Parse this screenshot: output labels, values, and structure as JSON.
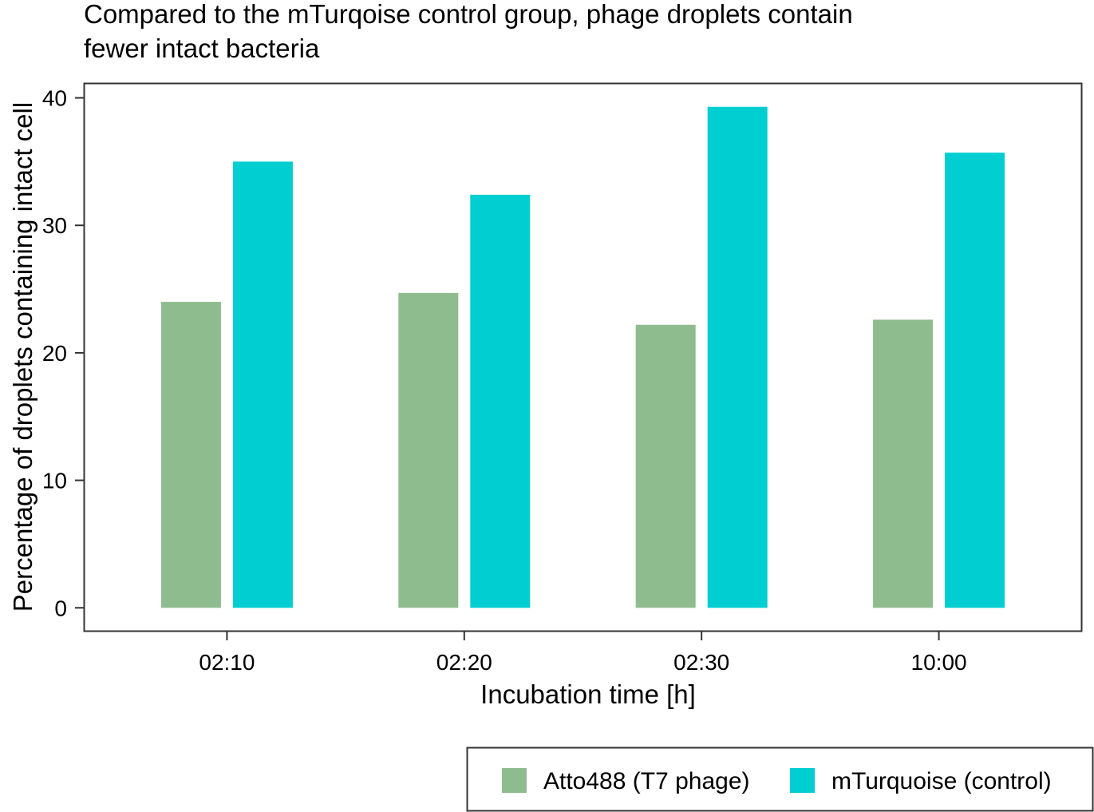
{
  "chart_data": {
    "type": "bar",
    "title": "Compared to the mTurqoise control group, phage droplets contain fewer intact bacteria",
    "title_lines": [
      "Compared to the mTurqoise control group, phage droplets contain",
      "fewer intact bacteria"
    ],
    "xlabel": "Incubation time [h]",
    "ylabel": "Percentage of droplets containing intact cell",
    "categories": [
      "02:10",
      "02:20",
      "02:30",
      "10:00"
    ],
    "ylim": [
      -1.8,
      41.1
    ],
    "yticks": [
      0,
      10,
      20,
      30,
      40
    ],
    "grid": false,
    "legend_position": "bottom-right",
    "series": [
      {
        "name": "Atto488 (T7 phage)",
        "color": "#8FBC8F",
        "values": [
          24.0,
          24.7,
          22.2,
          22.6
        ]
      },
      {
        "name": "mTurquoise (control)",
        "color": "#00CED1",
        "values": [
          35.0,
          32.4,
          39.3,
          35.7
        ]
      }
    ]
  }
}
